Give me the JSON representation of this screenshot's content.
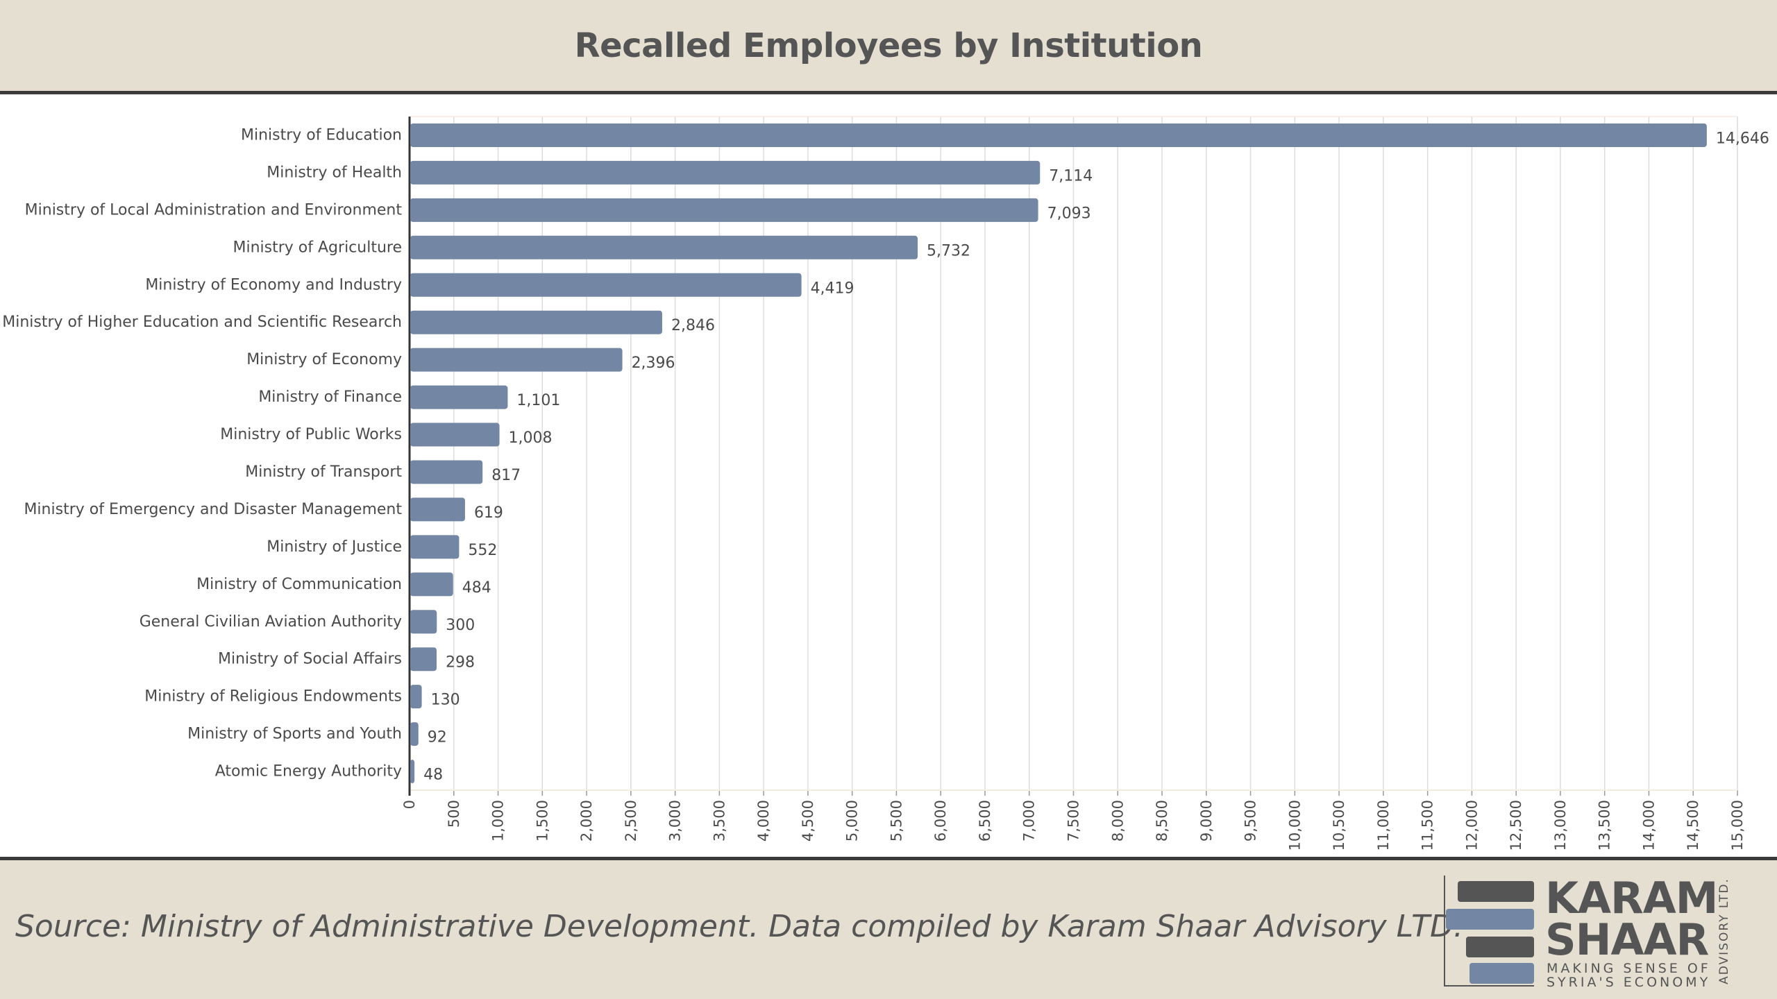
{
  "header": {
    "title": "Recalled Employees by Institution"
  },
  "footer": {
    "source": "Source: Ministry of Administrative Development. Data compiled by Karam Shaar Advisory LTD.",
    "logo": {
      "word1": "KARAM",
      "word2": "SHAAR",
      "tagline1": "MAKING SENSE OF",
      "tagline2": "SYRIA'S ECONOMY",
      "vertical": "ADVISORY LTD."
    }
  },
  "chart_data": {
    "type": "bar",
    "orientation": "horizontal",
    "title": "Recalled Employees by Institution",
    "xlabel": "",
    "ylabel": "",
    "xlim": [
      0,
      15000
    ],
    "x_tick_step": 500,
    "grid": true,
    "legend": "none",
    "bar_color": "#7386a3",
    "categories": [
      "Ministry of Education",
      "Ministry of Health",
      "Ministry of Local Administration and Environment",
      "Ministry of Agriculture",
      "Ministry of Economy and Industry",
      "Ministry of Higher Education and Scientific Research",
      "Ministry of Economy",
      "Ministry of Finance",
      "Ministry of Public Works",
      "Ministry of Transport",
      "Ministry of Emergency and Disaster Management",
      "Ministry of Justice",
      "Ministry of Communication",
      "General Civilian Aviation Authority",
      "Ministry of Social Affairs",
      "Ministry of Religious Endowments",
      "Ministry of Sports and Youth",
      "Atomic Energy Authority"
    ],
    "values": [
      14646,
      7114,
      7093,
      5732,
      4419,
      2846,
      2396,
      1101,
      1008,
      817,
      619,
      552,
      484,
      300,
      298,
      130,
      92,
      48
    ],
    "data_labels": [
      "14,646",
      "7,114",
      "7,093",
      "5,732",
      "4,419",
      "2,846",
      "2,396",
      "1,101",
      "1,008",
      "817",
      "619",
      "552",
      "484",
      "300",
      "298",
      "130",
      "92",
      "48"
    ]
  }
}
